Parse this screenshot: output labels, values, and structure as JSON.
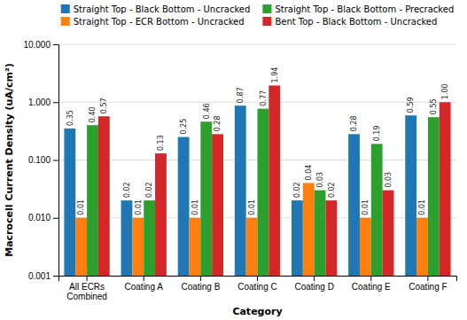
{
  "chart_data": {
    "type": "bar",
    "categories": [
      "All ECRs\nCombined",
      "Coating A",
      "Coating B",
      "Coating C",
      "Coating D",
      "Coating E",
      "Coating F"
    ],
    "series": [
      {
        "name": "Straight Top - Black Bottom - Uncracked",
        "values": [
          0.35,
          0.02,
          0.25,
          0.87,
          0.02,
          0.28,
          0.59
        ],
        "value_labels": [
          "0.35",
          "0.02",
          "0.25",
          "0.87",
          "0.02",
          "0.28",
          "0.59"
        ]
      },
      {
        "name": "Straight Top - ECR Bottom - Uncracked",
        "values": [
          0.01,
          0.01,
          0.01,
          0.01,
          0.04,
          0.01,
          0.01
        ],
        "value_labels": [
          "0.01",
          "0.01",
          "0.01",
          "0.01",
          "0.04",
          "0.01",
          "0.01"
        ]
      },
      {
        "name": "Straight Top - Black Bottom - Precracked",
        "values": [
          0.4,
          0.02,
          0.46,
          0.77,
          0.03,
          0.19,
          0.55
        ],
        "value_labels": [
          "0.40",
          "0.02",
          "0.46",
          "0.77",
          "0.03",
          "0.19",
          "0.55"
        ]
      },
      {
        "name": "Bent Top - Black Bottom - Uncracked",
        "values": [
          0.57,
          0.13,
          0.28,
          1.94,
          0.02,
          0.03,
          1.0
        ],
        "value_labels": [
          "0.57",
          "0.13",
          "0.28",
          "1.94",
          "0.02",
          "0.03",
          "1.00"
        ]
      }
    ],
    "xlabel": "Category",
    "ylabel": "Macrocell Current Density (uA/cm²)",
    "log": "y",
    "ylim": [
      0.001,
      10.0
    ],
    "yticks": [
      0.001,
      {
        "value": 0.01,
        "label": "0.010"
      },
      {
        "value": 0.1,
        "label": "0.100"
      },
      {
        "value": 1.0,
        "label": "1.000"
      },
      {
        "value": 10.0,
        "label": "10.000"
      }
    ],
    "grid": true,
    "legend": "top",
    "data_labels": true
  }
}
